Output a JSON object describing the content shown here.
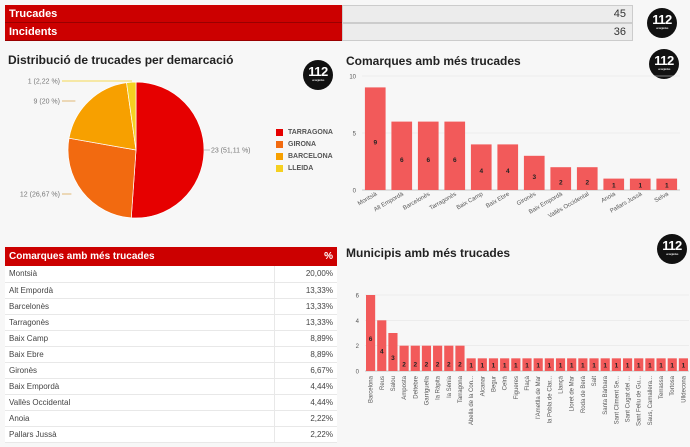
{
  "summary": [
    {
      "label": "Trucades",
      "value": "45"
    },
    {
      "label": "Incidents",
      "value": "36"
    }
  ],
  "logo": {
    "text": "112",
    "subtext": "emergències"
  },
  "pie": {
    "title": "Distribució de trucades per demarcació",
    "chart_data": {
      "type": "pie",
      "slices": [
        {
          "name": "TARRAGONA",
          "value": 23,
          "label": "23 (51,11 %)",
          "color": "#e60000"
        },
        {
          "name": "GIRONA",
          "value": 12,
          "label": "12 (26,67 %)",
          "color": "#f26a10"
        },
        {
          "name": "BARCELONA",
          "value": 9,
          "label": "9 (20 %)",
          "color": "#f7a000"
        },
        {
          "name": "LLEIDA",
          "value": 1,
          "label": "1 (2,22 %)",
          "color": "#f5d020"
        }
      ],
      "legend": "right"
    }
  },
  "comarques_chart": {
    "title": "Comarques amb més trucades",
    "chart_data": {
      "type": "bar",
      "categories": [
        "Montsià",
        "Alt Empordà",
        "Barcelonès",
        "Tarragonès",
        "Baix Camp",
        "Baix Ebre",
        "Gironès",
        "Baix Empordà",
        "Vallès Occidental",
        "Anoia",
        "Pallars Jussà",
        "Selva"
      ],
      "values": [
        9,
        6,
        6,
        6,
        4,
        4,
        3,
        2,
        2,
        1,
        1,
        1
      ],
      "ylim": [
        0,
        10
      ],
      "yticks": [
        0,
        5,
        10
      ],
      "color": "#f25a5a",
      "grid": true
    }
  },
  "table": {
    "header": [
      "Comarques amb més trucades",
      "%"
    ],
    "rows": [
      [
        "Montsià",
        "20,00%"
      ],
      [
        "Alt Empordà",
        "13,33%"
      ],
      [
        "Barcelonès",
        "13,33%"
      ],
      [
        "Tarragonès",
        "13,33%"
      ],
      [
        "Baix Camp",
        "8,89%"
      ],
      [
        "Baix Ebre",
        "8,89%"
      ],
      [
        "Gironès",
        "6,67%"
      ],
      [
        "Baix Empordà",
        "4,44%"
      ],
      [
        "Vallès Occidental",
        "4,44%"
      ],
      [
        "Anoia",
        "2,22%"
      ],
      [
        "Pallars Jussà",
        "2,22%"
      ]
    ]
  },
  "municipis_chart": {
    "title": "Municipis amb més trucades",
    "chart_data": {
      "type": "bar",
      "categories": [
        "Barcelona",
        "Reus",
        "Salou",
        "Amposta",
        "Deltebre",
        "Garriguella",
        "la Ràpita",
        "la Sénia",
        "Tarragona",
        "Abella de la Con...",
        "Alcanar",
        "Begur",
        "Celrà",
        "Figueres",
        "Flaçà",
        "l'Ametlla de Mar",
        "la Pobla de Clar...",
        "Llançà",
        "Lloret de Mar",
        "Roda de Berà",
        "Salt",
        "Santa Bàrbara",
        "Sant Climent Se...",
        "Sant Cugat del ...",
        "Sant Feliu de Gu...",
        "Saus, Camallera...",
        "Terrassa",
        "Tortosa",
        "Ulldecona"
      ],
      "values": [
        6,
        4,
        3,
        2,
        2,
        2,
        2,
        2,
        2,
        1,
        1,
        1,
        1,
        1,
        1,
        1,
        1,
        1,
        1,
        1,
        1,
        1,
        1,
        1,
        1,
        1,
        1,
        1,
        1
      ],
      "ylim": [
        0,
        6
      ],
      "yticks": [
        0,
        2,
        4,
        6
      ],
      "color": "#f25a5a",
      "grid": true
    }
  }
}
